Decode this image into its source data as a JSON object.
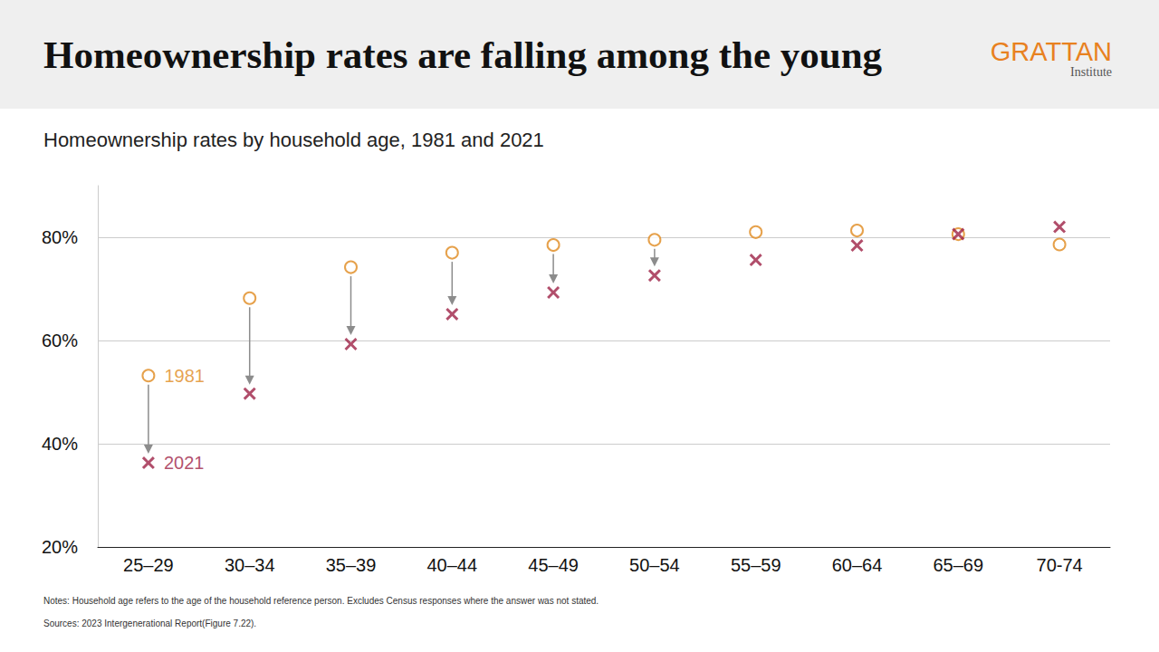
{
  "chart_data": {
    "type": "scatter",
    "title": "Homeownership rates are falling among the young",
    "subtitle": "Homeownership rates by household age, 1981 and 2021",
    "brand": "GRATTAN",
    "brand_sub": "Institute",
    "notes": "Notes: Household age refers to the age of the household reference person. Excludes Census responses where the answer was not stated.",
    "sources": "Sources: 2023 Intergenerational Report(Figure 7.22).",
    "categories": [
      "25–29",
      "30–34",
      "35–39",
      "40–44",
      "45–49",
      "50–54",
      "55–59",
      "60–64",
      "65–69",
      "70-74"
    ],
    "series": [
      {
        "name": "1981",
        "color": "#e08a1e",
        "marker": "circle",
        "values": [
          53.2,
          68.2,
          74.2,
          77,
          78.5,
          79.5,
          81,
          81.3,
          80.6,
          78.6
        ]
      },
      {
        "name": "2021",
        "color": "#9e2246",
        "marker": "cross",
        "values": [
          36.3,
          49.7,
          59.3,
          65.1,
          69.3,
          72.6,
          75.6,
          78.4,
          80.6,
          82
        ]
      }
    ],
    "ylim": [
      20,
      90
    ],
    "yticks": [
      {
        "value": 20,
        "label": "20%"
      },
      {
        "value": 40,
        "label": "40%"
      },
      {
        "value": 60,
        "label": "60%"
      },
      {
        "value": 80,
        "label": "80%"
      }
    ],
    "grid": true
  }
}
